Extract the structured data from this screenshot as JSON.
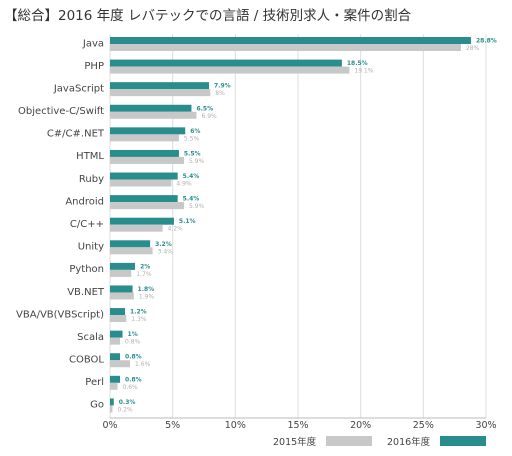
{
  "chart_data": {
    "type": "bar",
    "orientation": "horizontal",
    "title": "【総合】2016 年度 レバテックでの言語 / 技術別求人・案件の割合",
    "categories": [
      "Java",
      "PHP",
      "JavaScript",
      "Objective-C/Swift",
      "C#/C#.NET",
      "HTML",
      "Ruby",
      "Android",
      "C/C++",
      "Unity",
      "Python",
      "VB.NET",
      "VBA/VB(VBScript)",
      "Scala",
      "COBOL",
      "Perl",
      "Go"
    ],
    "series": [
      {
        "name": "2016年度",
        "color": "#2a8d8d",
        "values": [
          28.8,
          18.5,
          7.9,
          6.5,
          6,
          5.5,
          5.4,
          5.4,
          5.1,
          3.2,
          2,
          1.8,
          1.2,
          1,
          0.8,
          0.8,
          0.3
        ],
        "labels": [
          "28.8%",
          "18.5%",
          "7.9%",
          "6.5%",
          "6%",
          "5.5%",
          "5.4%",
          "5.4%",
          "5.1%",
          "3.2%",
          "2%",
          "1.8%",
          "1.2%",
          "1%",
          "0.8%",
          "0.8%",
          "0.3%"
        ]
      },
      {
        "name": "2015年度",
        "color": "#c8c8c8",
        "values": [
          28,
          19.1,
          8,
          6.9,
          5.5,
          5.9,
          4.9,
          5.9,
          4.2,
          3.4,
          1.7,
          1.9,
          1.3,
          0.8,
          1.6,
          0.6,
          0.2
        ],
        "labels": [
          "28%",
          "19.1%",
          "8%",
          "6.9%",
          "5.5%",
          "5.9%",
          "4.9%",
          "5.9%",
          "4.2%",
          "3.4%",
          "1.7%",
          "1.9%",
          "1.3%",
          "0.8%",
          "1.6%",
          "0.6%",
          "0.2%"
        ]
      }
    ],
    "xlim": [
      0,
      30
    ],
    "xticks": [
      0,
      5,
      10,
      15,
      20,
      25,
      30
    ],
    "xtick_labels": [
      "0%",
      "5%",
      "10%",
      "15%",
      "20%",
      "25%",
      "30%"
    ],
    "xlabel": "",
    "ylabel": "",
    "grid": "vertical",
    "legend": {
      "position": "bottom-right",
      "items": [
        {
          "label": "2015年度",
          "color": "#c8c8c8"
        },
        {
          "label": "2016年度",
          "color": "#2a8d8d"
        }
      ]
    }
  }
}
